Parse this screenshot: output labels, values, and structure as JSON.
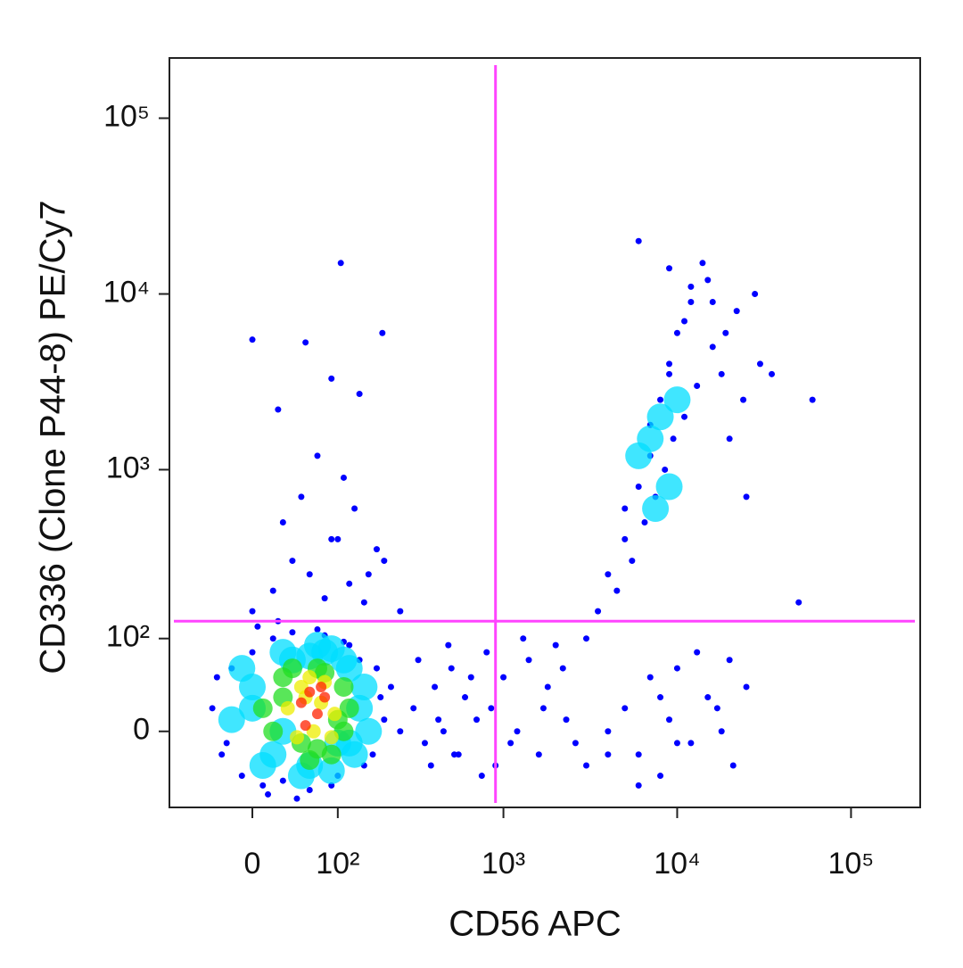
{
  "chart_data": {
    "type": "scatter",
    "xlabel": "CD56 APC",
    "ylabel": "CD336 (Clone P44-8) PE/Cy7",
    "scale": "biexponential",
    "xlim": [
      -96,
      250000
    ],
    "ylim": [
      -76,
      220000
    ],
    "xticks": [
      0,
      {
        "value": 100,
        "label": "10²"
      },
      {
        "value": 1000,
        "label": "10³"
      },
      {
        "value": 10000,
        "label": "10⁴"
      },
      {
        "value": 100000,
        "label": "10⁵"
      }
    ],
    "yticks": [
      0,
      {
        "value": 100,
        "label": "10²"
      },
      {
        "value": 1000,
        "label": "10³"
      },
      {
        "value": 10000,
        "label": "10⁴"
      },
      {
        "value": 100000,
        "label": "10⁵"
      }
    ],
    "gates": {
      "x": 900,
      "y": 130,
      "color": "#ff44ff"
    },
    "series": [
      {
        "color": "#0000ff",
        "x": [
          -40,
          -30,
          -20,
          -10,
          0,
          10,
          20,
          30,
          40,
          60,
          80,
          100,
          120,
          150,
          180,
          200,
          220,
          250,
          -35,
          -25,
          5,
          15,
          25,
          45,
          70,
          90,
          110,
          140,
          170,
          190,
          300,
          350,
          400,
          450,
          500,
          550,
          600,
          700,
          800,
          900,
          1000,
          1200,
          1400,
          1600,
          1800,
          2000,
          2300,
          2600,
          320,
          380,
          420,
          480,
          520,
          650,
          750,
          850,
          1100,
          1300,
          1700,
          2200,
          0,
          20,
          40,
          60,
          80,
          100,
          120,
          150,
          200,
          250,
          30,
          50,
          70,
          90,
          110,
          130,
          160,
          180,
          0,
          55,
          105,
          195,
          25,
          140,
          90,
          3000,
          4000,
          5000,
          6000,
          7000,
          8000,
          9000,
          10000,
          12000,
          15000,
          18000,
          20000,
          25000,
          3500,
          4500,
          5500,
          6500,
          7500,
          8500,
          9500,
          11000,
          13000,
          16000,
          22000,
          28000,
          3000,
          4000,
          5000,
          6000,
          7000,
          8000,
          9000,
          10000,
          12000,
          15000,
          18000,
          20000,
          25000,
          4000,
          6000,
          8000,
          10000,
          13000,
          17000,
          21000,
          5000,
          7000,
          9000,
          11000,
          14000,
          19000,
          24000,
          30000,
          6000,
          9000,
          12000,
          16000,
          35000,
          60000,
          50000
        ],
        "values": [
          20,
          -20,
          60,
          -40,
          80,
          -50,
          100,
          -45,
          110,
          -55,
          105,
          -40,
          90,
          -30,
          60,
          10,
          40,
          0,
          50,
          -10,
          120,
          -60,
          130,
          -65,
          115,
          -50,
          95,
          70,
          -20,
          30,
          20,
          -10,
          40,
          0,
          60,
          -20,
          30,
          10,
          80,
          -30,
          50,
          0,
          70,
          -20,
          40,
          90,
          10,
          -10,
          70,
          -30,
          10,
          90,
          -20,
          50,
          -40,
          20,
          -10,
          100,
          20,
          60,
          150,
          200,
          300,
          250,
          180,
          400,
          220,
          170,
          300,
          150,
          500,
          700,
          1200,
          400,
          900,
          600,
          250,
          350,
          5500,
          5300,
          15000,
          6000,
          2200,
          2700,
          3300,
          -30,
          0,
          20,
          -20,
          50,
          -40,
          10,
          60,
          -10,
          30,
          0,
          70,
          40,
          150,
          200,
          300,
          500,
          700,
          1000,
          1500,
          2000,
          3000,
          5000,
          8000,
          10000,
          100,
          250,
          400,
          800,
          1200,
          2500,
          4000,
          6000,
          9000,
          12000,
          3500,
          1500,
          700,
          -20,
          -50,
          30,
          -10,
          80,
          20,
          -30,
          600,
          1800,
          3500,
          7000,
          15000,
          6000,
          2500,
          4000,
          20000,
          14000,
          11000,
          9000,
          3500,
          2500,
          170
        ]
      },
      {
        "color": "#00ddff",
        "x": [
          -20,
          0,
          20,
          40,
          60,
          80,
          100,
          120,
          140,
          160,
          -10,
          10,
          30,
          50,
          70,
          90,
          110,
          130,
          150,
          0,
          30,
          60,
          90,
          120,
          7000,
          8000,
          9000,
          6000,
          10000,
          7500
        ],
        "values": [
          10,
          40,
          -20,
          70,
          -30,
          80,
          -10,
          60,
          20,
          0,
          60,
          -30,
          80,
          -40,
          90,
          -35,
          70,
          -20,
          40,
          20,
          0,
          75,
          85,
          -10,
          1500,
          2000,
          800,
          1200,
          2500,
          600
        ]
      },
      {
        "color": "#22dd22",
        "x": [
          10,
          30,
          50,
          70,
          90,
          110,
          20,
          40,
          60,
          80,
          100,
          120,
          30,
          70,
          110
        ],
        "values": [
          20,
          50,
          -10,
          60,
          -20,
          40,
          0,
          60,
          -25,
          55,
          10,
          20,
          30,
          -15,
          0
        ]
      },
      {
        "color": "#eeee00",
        "x": [
          35,
          50,
          65,
          80,
          95,
          45,
          60,
          75,
          90,
          55
        ],
        "values": [
          20,
          40,
          0,
          45,
          15,
          -5,
          50,
          25,
          -5,
          30
        ]
      },
      {
        "color": "#ff2200",
        "x": [
          50,
          60,
          70,
          80,
          55,
          75
        ],
        "values": [
          25,
          35,
          15,
          30,
          5,
          40
        ]
      }
    ]
  }
}
